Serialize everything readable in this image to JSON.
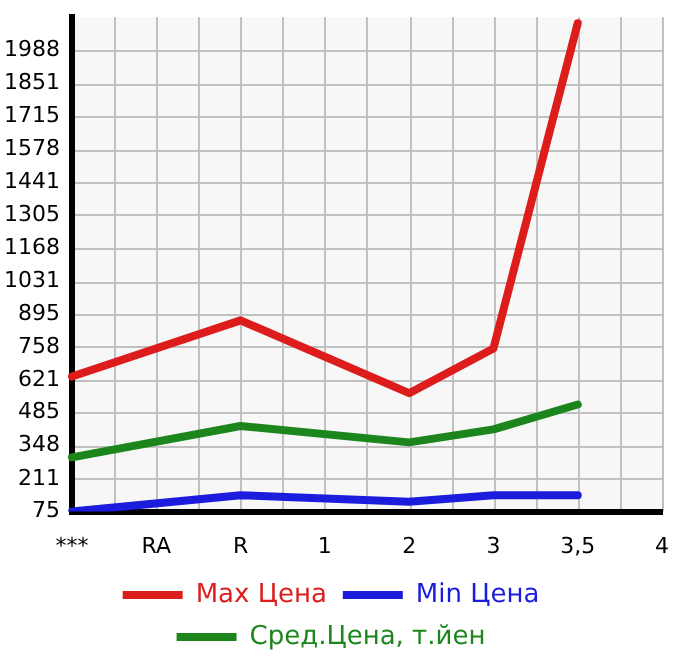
{
  "chart_data": {
    "type": "line",
    "categories": [
      "***",
      "RA",
      "R",
      "1",
      "2",
      "3",
      "3,5",
      "4"
    ],
    "series": [
      {
        "name": "Max Цена",
        "color": "#dd1c1c",
        "values": [
          635,
          null,
          868,
          null,
          566,
          751,
          2100,
          null
        ]
      },
      {
        "name": "Min Цена",
        "color": "#1c1cdd",
        "values": [
          75,
          null,
          143,
          null,
          116,
          143,
          143,
          null
        ]
      },
      {
        "name": "Сред.Цена, т.йен",
        "color": "#1c861c",
        "values": [
          300,
          null,
          430,
          null,
          362,
          416,
          519,
          null
        ]
      }
    ],
    "ylim": [
      75,
      2125
    ],
    "yticks": [
      75,
      211,
      348,
      485,
      621,
      758,
      895,
      1031,
      1168,
      1305,
      1441,
      1578,
      1715,
      1851,
      1988
    ],
    "grid": true,
    "legend": "bottom",
    "marker": "none",
    "line_style": "solid"
  }
}
